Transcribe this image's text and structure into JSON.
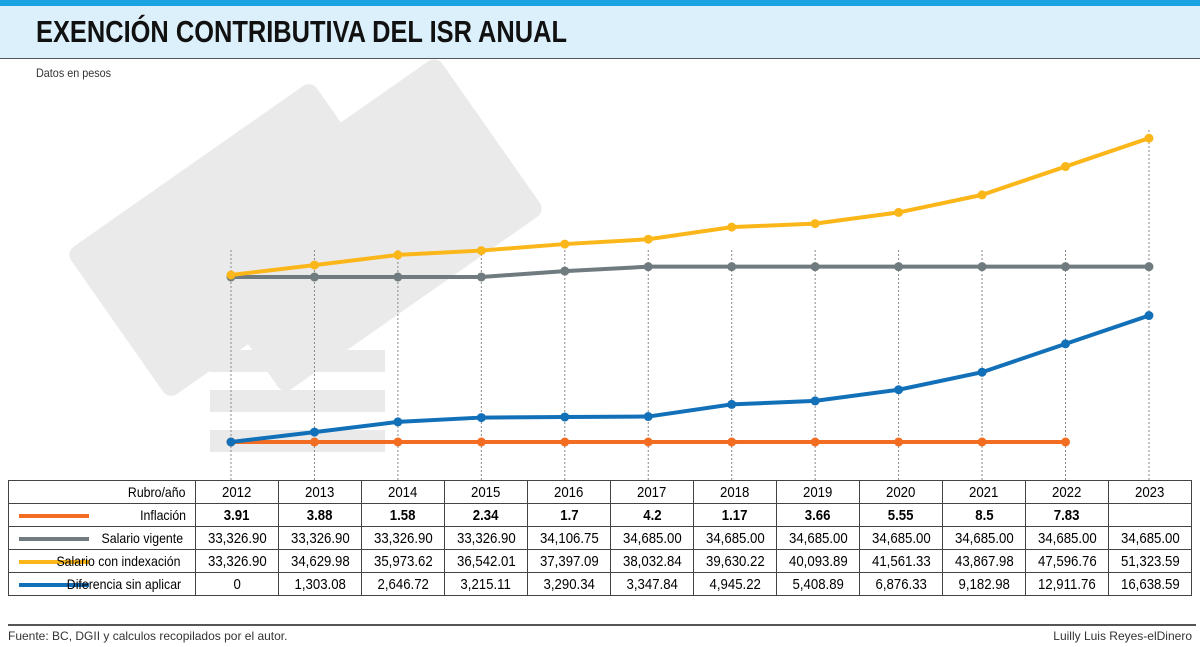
{
  "header": {
    "title": "EXENCIÓN CONTRIBUTIVA DEL ISR ANUAL",
    "subtitle": "Datos en pesos"
  },
  "chart_data": {
    "type": "line",
    "title": "EXENCIÓN CONTRIBUTIVA DEL ISR ANUAL",
    "ylabel": "Datos en pesos",
    "x": [
      "2012",
      "2013",
      "2014",
      "2015",
      "2016",
      "2017",
      "2018",
      "2019",
      "2020",
      "2021",
      "2022",
      "2023"
    ],
    "series": [
      {
        "name": "Inflación",
        "color": "#f26d21",
        "values": [
          3.91,
          3.88,
          1.58,
          2.34,
          1.7,
          4.2,
          1.17,
          3.66,
          5.55,
          8.5,
          7.83,
          null
        ],
        "display": [
          "3.91",
          "3.88",
          "1.58",
          "2.34",
          "1.7",
          "4.2",
          "1.17",
          "3.66",
          "5.55",
          "8.5",
          "7.83",
          ""
        ]
      },
      {
        "name": "Salario vigente",
        "color": "#6f7b7f",
        "values": [
          33326.9,
          33326.9,
          33326.9,
          33326.9,
          34106.75,
          34685.0,
          34685.0,
          34685.0,
          34685.0,
          34685.0,
          34685.0,
          34685.0
        ],
        "display": [
          "33,326.90",
          "33,326.90",
          "33,326.90",
          "33,326.90",
          "34,106.75",
          "34,685.00",
          "34,685.00",
          "34,685.00",
          "34,685.00",
          "34,685.00",
          "34,685.00",
          "34,685.00"
        ]
      },
      {
        "name": "Salario con indexación",
        "color": "#fbb61a",
        "values": [
          33326.9,
          34629.98,
          35973.62,
          36542.01,
          37397.09,
          38032.84,
          39630.22,
          40093.89,
          41561.33,
          43867.98,
          47596.76,
          51323.59
        ],
        "display": [
          "33,326.90",
          "34,629.98",
          "35,973.62",
          "36,542.01",
          "37,397.09",
          "38,032.84",
          "39,630.22",
          "40,093.89",
          "41,561.33",
          "43,867.98",
          "47,596.76",
          "51,323.59"
        ]
      },
      {
        "name": "Diferencia sin aplicar",
        "color": "#1170b8",
        "values": [
          0,
          1303.08,
          2646.72,
          3215.11,
          3290.34,
          3347.84,
          4945.22,
          5408.89,
          6876.33,
          9182.98,
          12911.76,
          16638.59
        ],
        "display": [
          "0",
          "1,303.08",
          "2,646.72",
          "3,215.11",
          "3,290.34",
          "3,347.84",
          "4,945.22",
          "5,408.89",
          "6,876.33",
          "9,182.98",
          "12,911.76",
          "16,638.59"
        ]
      }
    ],
    "grid": "vertical dotted per year",
    "legend": "table-below"
  },
  "table": {
    "corner": "Rubro/año"
  },
  "footer": {
    "source": "Fuente: BC, DGII y calculos recopilados por el autor.",
    "credit": "Luilly Luis Reyes-elDinero"
  }
}
